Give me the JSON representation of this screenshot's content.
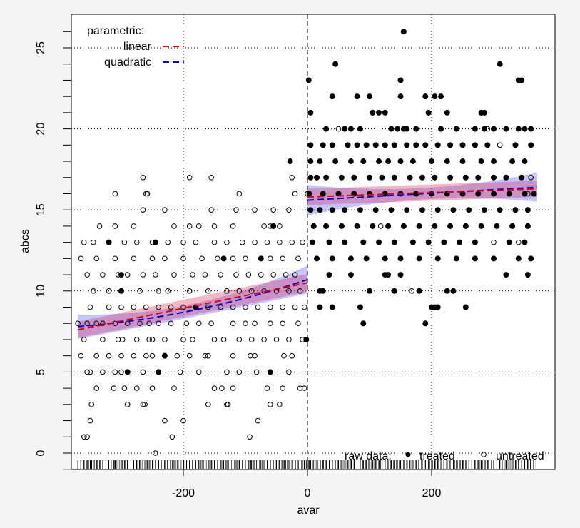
{
  "chart_data": {
    "type": "scatter",
    "title": "",
    "xlabel": "avar",
    "ylabel": "abcs",
    "xlim": [
      -380,
      400
    ],
    "ylim": [
      -1,
      27
    ],
    "x_ticks": [
      -200,
      0,
      200
    ],
    "x_tick_labels": [
      "-200",
      "0",
      "200"
    ],
    "y_ticks": [
      0,
      5,
      10,
      15,
      20,
      25
    ],
    "y_tick_labels": [
      "0",
      "5",
      "10",
      "15",
      "20",
      "25"
    ],
    "cutoff": 0,
    "grid": true,
    "legend_parametric": {
      "title": "parametric:",
      "items": [
        {
          "label": "linear",
          "color": "#dd0000"
        },
        {
          "label": "quadratic",
          "color": "#0000dd"
        }
      ],
      "placement": "top-left"
    },
    "legend_raw": {
      "title": "raw data:",
      "treated_label": "treated",
      "untreated_label": "untreated",
      "placement": "bottom-right"
    },
    "fits": {
      "linear_left": {
        "x": [
          -370,
          0
        ],
        "y": [
          7.6,
          10.5
        ],
        "ci": [
          0.5,
          0.55
        ]
      },
      "quadratic_left": {
        "x": [
          -370,
          -185,
          0
        ],
        "y": [
          7.8,
          8.8,
          10.7
        ],
        "ci": [
          0.75,
          0.4,
          0.85
        ]
      },
      "linear_right": {
        "x": [
          0,
          370
        ],
        "y": [
          15.8,
          16.3
        ],
        "ci": [
          0.5,
          0.5
        ]
      },
      "quadratic_right": {
        "x": [
          0,
          185,
          370
        ],
        "y": [
          15.6,
          16.0,
          16.4
        ],
        "ci": [
          0.95,
          0.35,
          0.9
        ]
      }
    },
    "untreated": {
      "0": [
        -245
      ],
      "1": [
        -360,
        -355,
        -218,
        -93
      ],
      "2": [
        -350,
        -230,
        -200,
        -80
      ],
      "3": [
        -348,
        -290,
        -265,
        -262,
        -160,
        -130,
        -128,
        -60,
        -45
      ],
      "4": [
        -340,
        -312,
        -295,
        -275,
        -250,
        -215,
        -150,
        -138,
        -120,
        -65,
        -40,
        -12,
        -5
      ],
      "5": [
        -355,
        -350,
        -330,
        -310,
        -300,
        -265,
        -205,
        -175,
        -130,
        -110,
        -82,
        -30
      ],
      "6": [
        -365,
        -340,
        -320,
        -300,
        -280,
        -260,
        -250,
        -210,
        -190,
        -165,
        -160,
        -120,
        -92,
        -85,
        -38,
        -25
      ],
      "7": [
        -360,
        -330,
        -305,
        -298,
        -275,
        -255,
        -250,
        -230,
        -200,
        -185,
        -150,
        -135,
        -110,
        -90,
        -70,
        -50,
        -30,
        -8
      ],
      "8": [
        -370,
        -355,
        -340,
        -330,
        -310,
        -290,
        -270,
        -255,
        -240,
        -220,
        -195,
        -175,
        -155,
        -120,
        -100,
        -85,
        -60,
        -40,
        -15
      ],
      "9": [
        -350,
        -320,
        -300,
        -280,
        -260,
        -240,
        -220,
        -200,
        -160,
        -140,
        -120,
        -100,
        -80,
        -60,
        -40,
        -20,
        -5
      ],
      "10": [
        -345,
        -320,
        -270,
        -240,
        -225,
        -190,
        -160,
        -130,
        -110,
        -90,
        -70,
        -50,
        -30,
        -12
      ],
      "11": [
        -355,
        -330,
        -305,
        -290,
        -265,
        -245,
        -215,
        -185,
        -165,
        -140,
        -115,
        -95,
        -75,
        -55,
        -35,
        -20
      ],
      "12": [
        -365,
        -340,
        -310,
        -280,
        -250,
        -230,
        -200,
        -170,
        -145,
        -120,
        -100,
        -60,
        -40,
        -15
      ],
      "13": [
        -360,
        -345,
        -295,
        -275,
        -250,
        -225,
        -200,
        -180,
        -150,
        -130,
        -105,
        -85,
        -65,
        -45,
        -25,
        -8
      ],
      "14": [
        -335,
        -310,
        -280,
        -215,
        -190,
        -175,
        -150,
        -120,
        -70,
        -60,
        -45,
        118
      ],
      "15": [
        -265,
        -230,
        -155,
        -115,
        -85,
        -55,
        -30
      ],
      "16": [
        -310,
        -260,
        -258,
        -110,
        -20,
        0,
        355
      ],
      "17": [
        -265,
        -190,
        -155,
        -25,
        360
      ],
      "10b": [
        168
      ],
      "13b": [
        340,
        300
      ],
      "19": [
        310
      ],
      "20": [
        50,
        290
      ]
    },
    "treated": {
      "5": [
        -290,
        -240,
        -60
      ],
      "6": [
        -230
      ],
      "7": [
        -2
      ],
      "8": [
        90,
        190
      ],
      "9": [
        -180,
        20,
        40,
        85,
        200,
        205,
        210,
        255
      ],
      "10": [
        -300,
        20,
        25,
        100,
        140,
        180,
        225,
        235
      ],
      "11": [
        -300,
        35,
        70,
        125,
        130,
        150,
        320,
        355
      ],
      "12": [
        -135,
        -75,
        15,
        40,
        70,
        95,
        125,
        150,
        180,
        210,
        240,
        270,
        300,
        340,
        360
      ],
      "13": [
        -320,
        -245,
        8,
        35,
        60,
        90,
        115,
        140,
        170,
        195,
        220,
        245,
        270,
        325,
        350
      ],
      "14": [
        -55,
        10,
        30,
        55,
        80,
        105,
        130,
        155,
        180,
        205,
        230,
        255,
        280,
        305,
        330,
        355
      ],
      "15": [
        5,
        20,
        40,
        60,
        85,
        110,
        135,
        160,
        185,
        210,
        235,
        260,
        285,
        310,
        335,
        355
      ],
      "16": [
        3,
        25,
        50,
        75,
        100,
        125,
        150,
        175,
        200,
        225,
        250,
        275,
        300,
        325,
        350,
        365
      ],
      "17": [
        5,
        15,
        30,
        55,
        75,
        100,
        120,
        140,
        165,
        185,
        205,
        230,
        255,
        275,
        300,
        320,
        345
      ],
      "18": [
        -28,
        5,
        20,
        45,
        70,
        90,
        115,
        130,
        150,
        170,
        200,
        225,
        250,
        280,
        300,
        330,
        350
      ],
      "19": [
        5,
        25,
        40,
        65,
        80,
        95,
        110,
        125,
        140,
        160,
        175,
        190,
        210,
        230,
        250,
        270,
        290,
        335,
        360
      ],
      "20": [
        30,
        60,
        70,
        85,
        135,
        145,
        155,
        160,
        175,
        215,
        240,
        270,
        285,
        300,
        320,
        340,
        350,
        360
      ],
      "21": [
        5,
        105,
        115,
        125,
        195,
        225,
        280,
        285
      ],
      "22": [
        40,
        80,
        100,
        150,
        190,
        205,
        215
      ],
      "23": [
        2,
        150,
        340,
        345
      ],
      "24": [
        45,
        310
      ],
      "26": [
        155
      ]
    }
  }
}
